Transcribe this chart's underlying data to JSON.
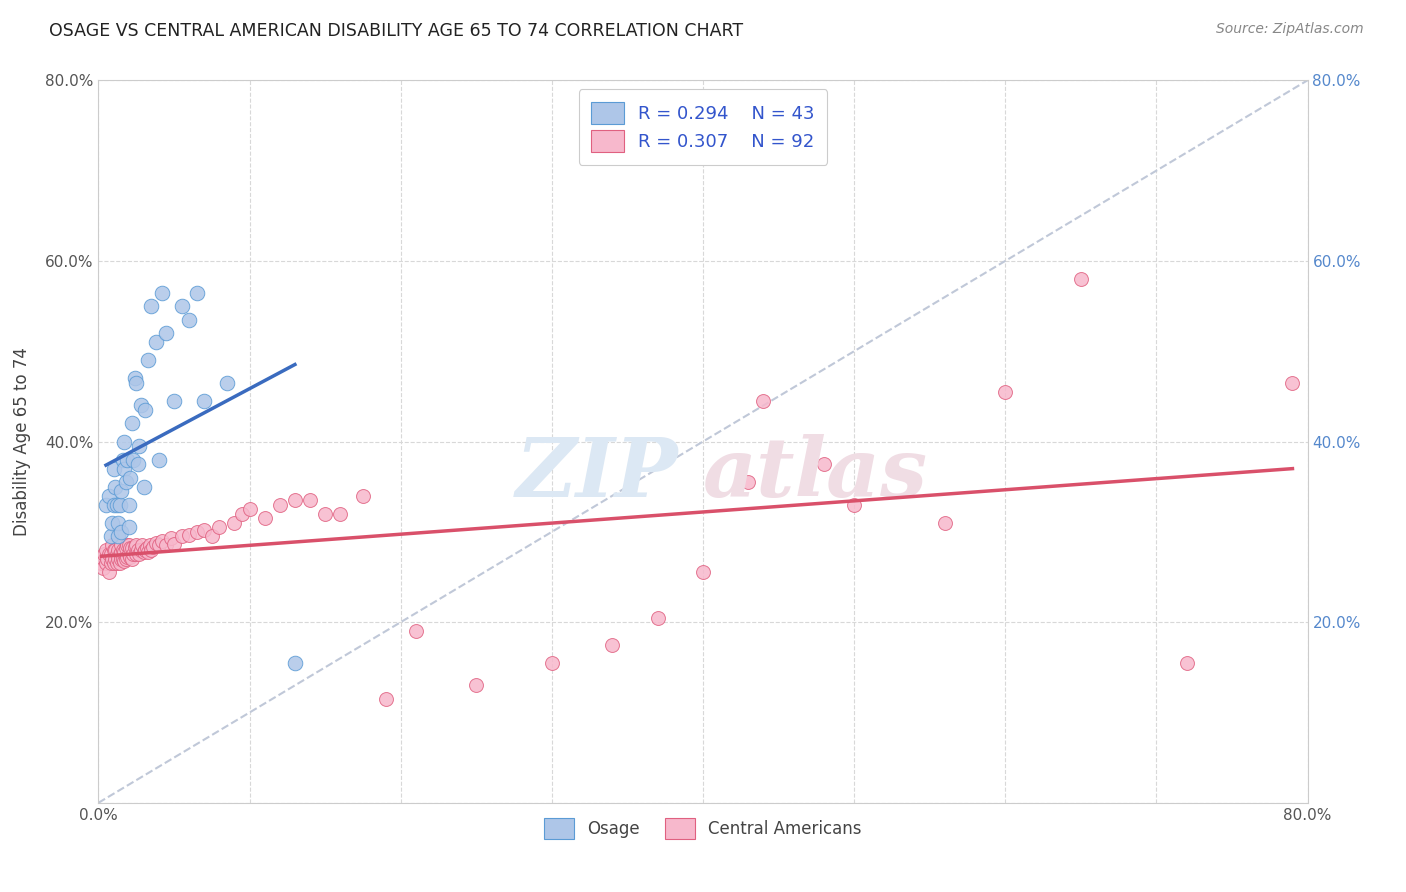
{
  "title": "OSAGE VS CENTRAL AMERICAN DISABILITY AGE 65 TO 74 CORRELATION CHART",
  "source": "Source: ZipAtlas.com",
  "ylabel": "Disability Age 65 to 74",
  "xlim": [
    0.0,
    0.8
  ],
  "ylim": [
    0.0,
    0.8
  ],
  "osage_color": "#aec6e8",
  "osage_edge_color": "#5b9bd5",
  "central_color": "#f7b8cc",
  "central_edge_color": "#e06080",
  "osage_line_color": "#3a6bbf",
  "central_line_color": "#d9506a",
  "diag_color": "#c0c8d8",
  "watermark_zip_color": "#dce8f4",
  "watermark_atlas_color": "#f0dde4",
  "legend_label_color": "#3355cc",
  "osage_points_x": [
    0.005,
    0.007,
    0.008,
    0.009,
    0.01,
    0.01,
    0.011,
    0.012,
    0.013,
    0.013,
    0.014,
    0.015,
    0.015,
    0.016,
    0.017,
    0.017,
    0.018,
    0.019,
    0.02,
    0.02,
    0.021,
    0.022,
    0.023,
    0.024,
    0.025,
    0.026,
    0.027,
    0.028,
    0.03,
    0.031,
    0.033,
    0.035,
    0.038,
    0.04,
    0.042,
    0.045,
    0.05,
    0.055,
    0.06,
    0.065,
    0.07,
    0.085,
    0.13
  ],
  "osage_points_y": [
    0.33,
    0.34,
    0.295,
    0.31,
    0.33,
    0.37,
    0.35,
    0.33,
    0.295,
    0.31,
    0.33,
    0.3,
    0.345,
    0.38,
    0.37,
    0.4,
    0.355,
    0.38,
    0.305,
    0.33,
    0.36,
    0.42,
    0.38,
    0.47,
    0.465,
    0.375,
    0.395,
    0.44,
    0.35,
    0.435,
    0.49,
    0.55,
    0.51,
    0.38,
    0.565,
    0.52,
    0.445,
    0.55,
    0.535,
    0.565,
    0.445,
    0.465,
    0.155
  ],
  "central_points_x": [
    0.002,
    0.003,
    0.004,
    0.005,
    0.005,
    0.006,
    0.007,
    0.007,
    0.008,
    0.008,
    0.009,
    0.009,
    0.01,
    0.01,
    0.011,
    0.011,
    0.012,
    0.012,
    0.013,
    0.013,
    0.014,
    0.014,
    0.015,
    0.015,
    0.015,
    0.016,
    0.016,
    0.017,
    0.017,
    0.018,
    0.018,
    0.019,
    0.019,
    0.02,
    0.02,
    0.021,
    0.021,
    0.022,
    0.022,
    0.023,
    0.024,
    0.025,
    0.025,
    0.026,
    0.027,
    0.028,
    0.029,
    0.03,
    0.031,
    0.032,
    0.033,
    0.034,
    0.035,
    0.036,
    0.038,
    0.04,
    0.042,
    0.045,
    0.048,
    0.05,
    0.055,
    0.06,
    0.065,
    0.07,
    0.075,
    0.08,
    0.09,
    0.095,
    0.1,
    0.11,
    0.12,
    0.13,
    0.14,
    0.15,
    0.16,
    0.175,
    0.19,
    0.21,
    0.25,
    0.3,
    0.34,
    0.37,
    0.4,
    0.43,
    0.44,
    0.48,
    0.5,
    0.56,
    0.6,
    0.65,
    0.72,
    0.79
  ],
  "central_points_y": [
    0.265,
    0.26,
    0.275,
    0.265,
    0.28,
    0.27,
    0.255,
    0.275,
    0.265,
    0.275,
    0.27,
    0.285,
    0.265,
    0.28,
    0.27,
    0.28,
    0.265,
    0.275,
    0.27,
    0.28,
    0.265,
    0.275,
    0.27,
    0.278,
    0.285,
    0.27,
    0.28,
    0.268,
    0.278,
    0.27,
    0.282,
    0.272,
    0.285,
    0.275,
    0.285,
    0.272,
    0.282,
    0.27,
    0.282,
    0.275,
    0.283,
    0.275,
    0.285,
    0.28,
    0.275,
    0.28,
    0.285,
    0.278,
    0.28,
    0.282,
    0.278,
    0.285,
    0.28,
    0.283,
    0.288,
    0.285,
    0.29,
    0.285,
    0.293,
    0.287,
    0.295,
    0.297,
    0.3,
    0.302,
    0.295,
    0.305,
    0.31,
    0.32,
    0.325,
    0.315,
    0.33,
    0.335,
    0.335,
    0.32,
    0.32,
    0.34,
    0.115,
    0.19,
    0.13,
    0.155,
    0.175,
    0.205,
    0.255,
    0.355,
    0.445,
    0.375,
    0.33,
    0.31,
    0.455,
    0.58,
    0.155,
    0.465
  ]
}
